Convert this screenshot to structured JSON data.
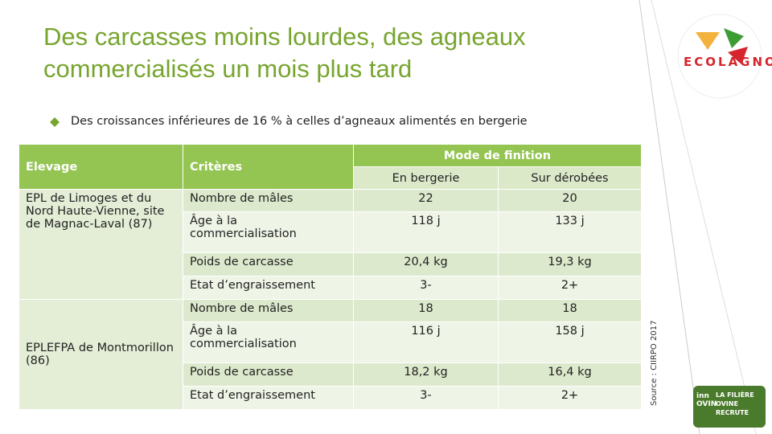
{
  "title": "Des carcasses moins lourdes, des agneaux commercialisés un mois plus tard",
  "bullet": "Des croissances inférieures de 16 % à celles d’agneaux alimentés en bergerie",
  "table": {
    "headers": [
      "Elevage",
      "Critères"
    ],
    "group_header": "Mode de finition",
    "subheaders": [
      "En bergerie",
      "Sur dérobées"
    ],
    "groups": [
      {
        "elevage": "EPL de Limoges et du Nord Haute-Vienne, site de Magnac-Laval (87)",
        "rows": [
          [
            "Nombre de mâles",
            "22",
            "20"
          ],
          [
            "Âge à la commercialisation",
            "118 j",
            "133 j"
          ],
          [
            "Poids de carcasse",
            "20,4 kg",
            "19,3 kg"
          ],
          [
            "Etat d’engraissement",
            "3-",
            "2+"
          ]
        ]
      },
      {
        "elevage": "EPLEFPA de Montmorillon (86)",
        "rows": [
          [
            "Nombre de mâles",
            "18",
            "18"
          ],
          [
            "Âge à la commercialisation",
            "116 j",
            "158 j"
          ],
          [
            "Poids de carcasse",
            "18,2 kg",
            "16,4 kg"
          ],
          [
            "Etat d’engraissement",
            "3-",
            "2+"
          ]
        ]
      }
    ]
  },
  "source": "Source : CIIRPO 2017",
  "logos": {
    "ecolagno": "ECOLAGNO",
    "inn_ovin": "inn OVIN",
    "recrute": "LA FILIÈRE OVINE RECRUTE"
  }
}
